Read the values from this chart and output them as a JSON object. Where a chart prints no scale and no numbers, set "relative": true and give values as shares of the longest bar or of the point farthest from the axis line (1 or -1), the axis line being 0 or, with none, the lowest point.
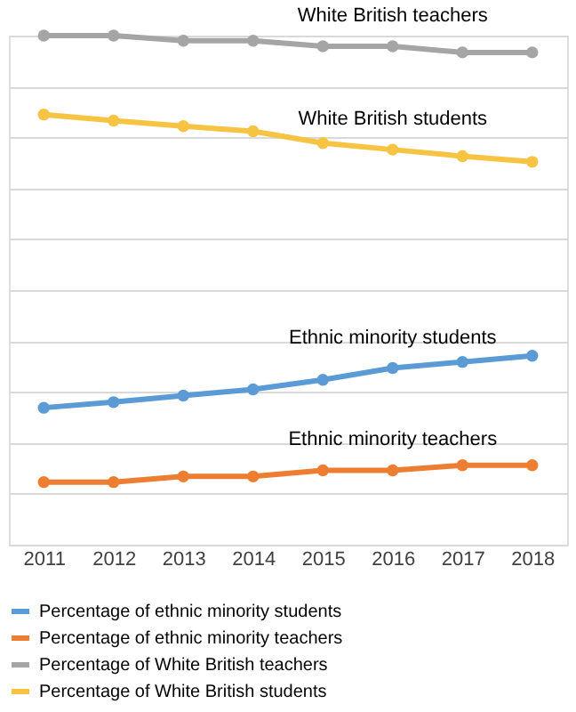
{
  "chart_data": {
    "type": "line",
    "relative": true,
    "categories": [
      "2011",
      "2012",
      "2013",
      "2014",
      "2015",
      "2016",
      "2017",
      "2018"
    ],
    "series": [
      {
        "name": "Percentage of ethnic minority students",
        "color": "#5b9bd5",
        "values": [
          0.269,
          0.28,
          0.293,
          0.305,
          0.324,
          0.347,
          0.359,
          0.371
        ]
      },
      {
        "name": "Percentage of ethnic minority teachers",
        "color": "#ed7d31",
        "values": [
          0.123,
          0.123,
          0.134,
          0.134,
          0.146,
          0.146,
          0.156,
          0.156
        ]
      },
      {
        "name": "Percentage of White British  teachers",
        "color": "#a5a5a5",
        "values": [
          1,
          1,
          0.99,
          0.99,
          0.979,
          0.979,
          0.967,
          0.967
        ]
      },
      {
        "name": "Percentage of White British students",
        "color": "#f7c342",
        "values": [
          0.845,
          0.833,
          0.822,
          0.812,
          0.789,
          0.776,
          0.763,
          0.752
        ]
      }
    ],
    "annotations": [
      "Ethnic minority students",
      "Ethnic minority teachers",
      "White British teachers",
      "White British students"
    ],
    "grid": "y",
    "marker": "circle",
    "line_style": "solid",
    "legend": "bottom"
  }
}
